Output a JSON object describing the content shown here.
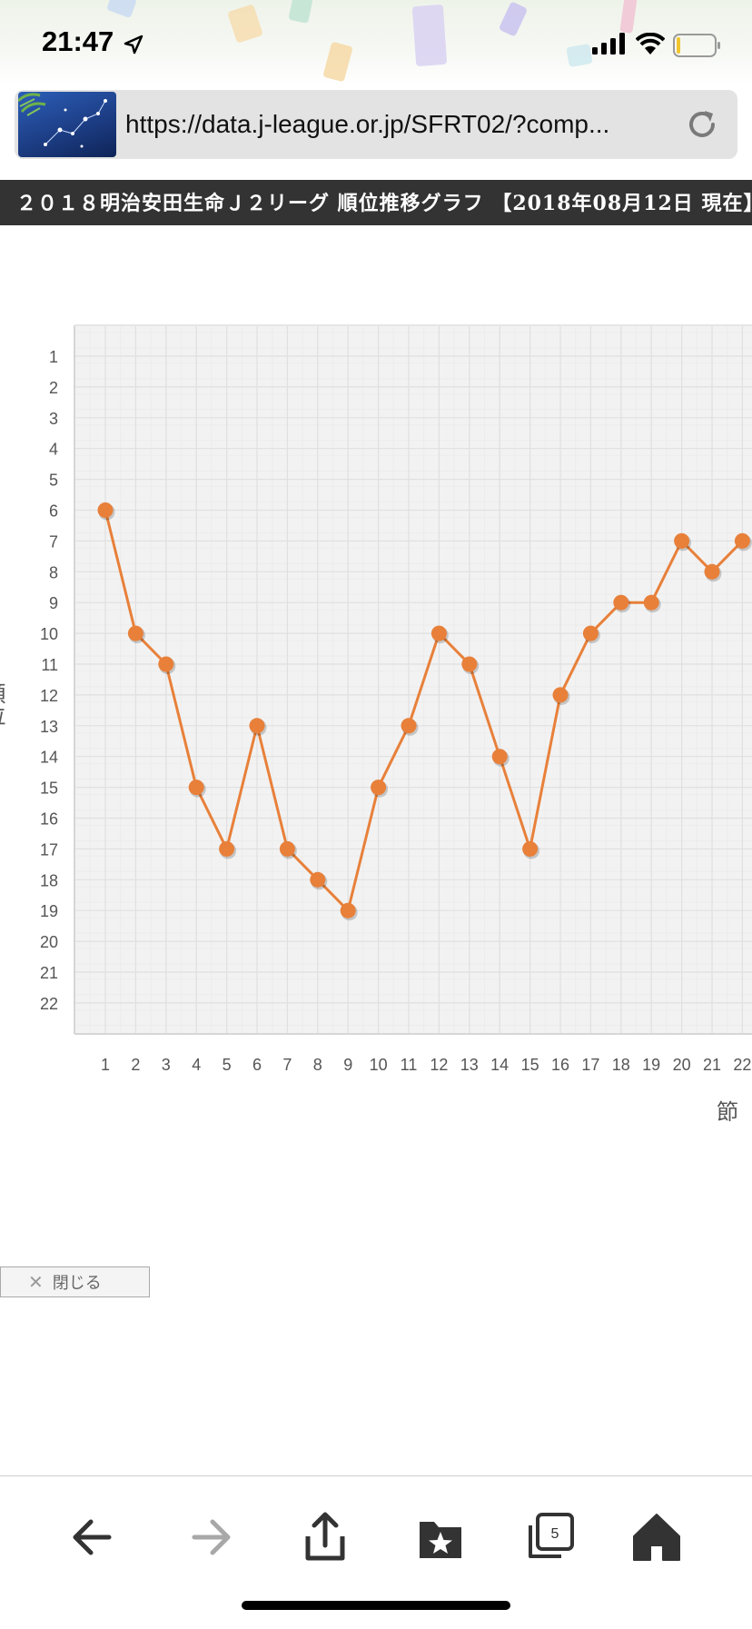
{
  "status": {
    "time": "21:47"
  },
  "url_bar": {
    "url": "https://data.j-league.or.jp/SFRT02/?comp..."
  },
  "page": {
    "title": "２０１８明治安田生命Ｊ２リーグ 順位推移グラフ 【2018年08月12日 現在】",
    "close_label": "閉じる"
  },
  "toolbar": {
    "tab_count": "5",
    "items": [
      "back",
      "forward",
      "share",
      "bookmarks",
      "tabs",
      "home"
    ]
  },
  "colors": {
    "line": "#e8803a",
    "point": "#e8803a",
    "plot_bg": "#f2f2f2",
    "grid": "#e0e0e0",
    "title_bg": "#333333"
  },
  "chart_data": {
    "type": "line",
    "ylabel": "順位",
    "xlabel": "節",
    "y_inverted": true,
    "ylim": [
      1,
      22
    ],
    "y_ticks": [
      1,
      2,
      3,
      4,
      5,
      6,
      7,
      8,
      9,
      10,
      11,
      12,
      13,
      14,
      15,
      16,
      17,
      18,
      19,
      20,
      21,
      22
    ],
    "x": [
      1,
      2,
      3,
      4,
      5,
      6,
      7,
      8,
      9,
      10,
      11,
      12,
      13,
      14,
      15,
      16,
      17,
      18,
      19,
      20,
      21,
      22
    ],
    "series": [
      {
        "values": [
          6,
          10,
          11,
          15,
          17,
          13,
          17,
          18,
          19,
          15,
          13,
          10,
          11,
          14,
          17,
          12,
          10,
          9,
          9,
          7,
          8,
          7
        ]
      }
    ],
    "grid": true,
    "legend": "none"
  }
}
